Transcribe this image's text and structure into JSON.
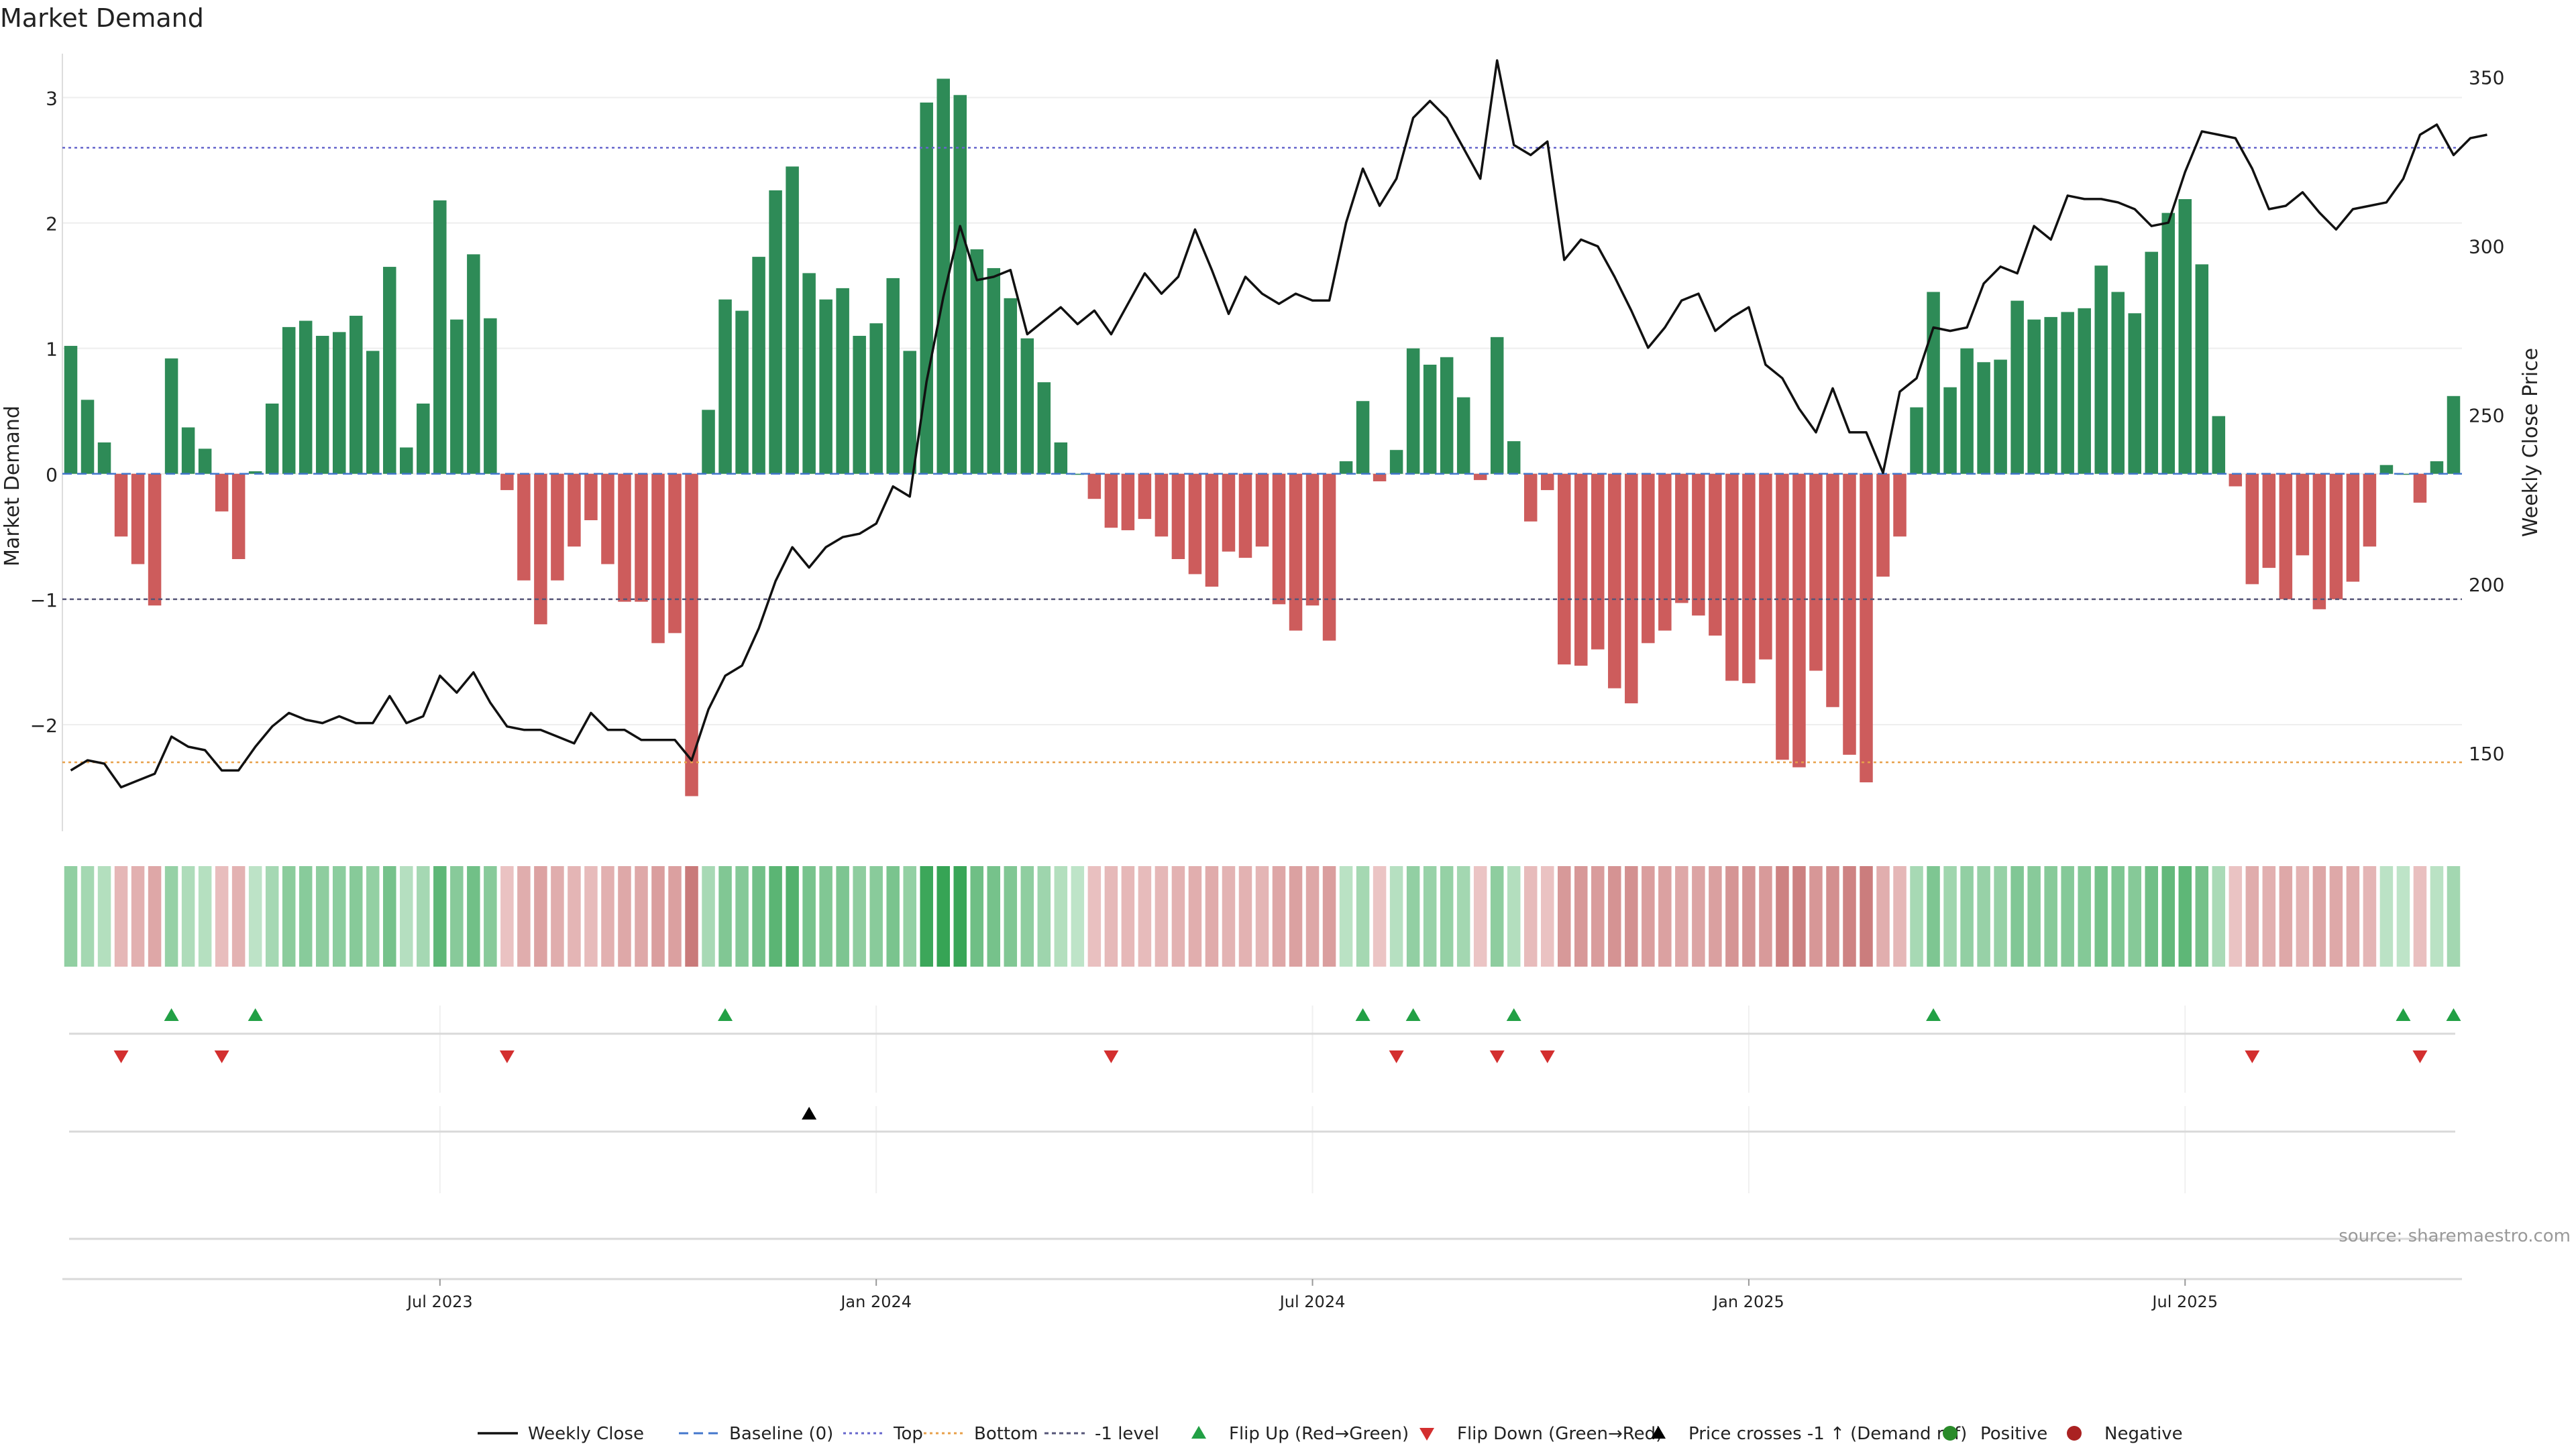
{
  "chart_data": {
    "type": "bar",
    "title": "Market Demand",
    "ylabel": "Market Demand",
    "y2label": "Weekly Close Price",
    "ylim": [
      -2.85,
      3.35
    ],
    "y2lim": [
      127,
      357
    ],
    "yticks": [
      -2,
      -1,
      0,
      1,
      2,
      3
    ],
    "ytick_labels": [
      "−2",
      "−1",
      "0",
      "1",
      "2",
      "3"
    ],
    "y2ticks": [
      150,
      200,
      250,
      300,
      350
    ],
    "ytick2_labels": [
      "150",
      "200",
      "250",
      "300",
      "350"
    ],
    "x_ticks": [
      {
        "week": 22,
        "label": "Jul 2023"
      },
      {
        "week": 48,
        "label": "Jan 2024"
      },
      {
        "week": 74,
        "label": "Jul 2024"
      },
      {
        "week": 100,
        "label": "Jan 2025"
      },
      {
        "week": 126,
        "label": "Jul 2025"
      }
    ],
    "reference_lines": {
      "baseline": 0,
      "top": 2.6,
      "bottom": -2.3,
      "minus_one_level": -1
    },
    "demand": [
      1.02,
      0.59,
      0.25,
      -0.5,
      -0.72,
      -1.05,
      0.92,
      0.37,
      0.2,
      -0.3,
      -0.68,
      0.02,
      0.56,
      1.17,
      1.22,
      1.1,
      1.13,
      1.26,
      0.98,
      1.65,
      0.21,
      0.56,
      2.18,
      1.23,
      1.75,
      1.24,
      -0.13,
      -0.85,
      -1.2,
      -0.85,
      -0.58,
      -0.37,
      -0.72,
      -1.02,
      -1.02,
      -1.35,
      -1.27,
      -2.57,
      0.51,
      1.39,
      1.3,
      1.73,
      2.26,
      2.45,
      1.6,
      1.39,
      1.48,
      1.1,
      1.2,
      1.56,
      0.98,
      2.96,
      3.15,
      3.02,
      1.79,
      1.64,
      1.4,
      1.08,
      0.73,
      0.25,
      0.0,
      -0.2,
      -0.43,
      -0.45,
      -0.36,
      -0.5,
      -0.68,
      -0.8,
      -0.9,
      -0.62,
      -0.67,
      -0.58,
      -1.04,
      -1.25,
      -1.05,
      -1.33,
      0.1,
      0.58,
      -0.06,
      0.19,
      1.0,
      0.87,
      0.93,
      0.61,
      -0.05,
      1.09,
      0.26,
      -0.38,
      -0.13,
      -1.52,
      -1.53,
      -1.4,
      -1.71,
      -1.83,
      -1.35,
      -1.25,
      -1.03,
      -1.13,
      -1.29,
      -1.65,
      -1.67,
      -1.48,
      -2.28,
      -2.34,
      -1.57,
      -1.86,
      -2.24,
      -2.46,
      -0.82,
      -0.5,
      0.53,
      1.45,
      0.69,
      1.0,
      0.89,
      0.91,
      1.38,
      1.23,
      1.25,
      1.29,
      1.32,
      1.66,
      1.45,
      1.28,
      1.77,
      2.08,
      2.19,
      1.67,
      0.46,
      -0.1,
      -0.88,
      -0.75,
      -1.0,
      -0.65,
      -1.08,
      -1.0,
      -0.86,
      -0.58,
      0.07,
      0.0,
      -0.23,
      0.1,
      0.62
    ],
    "weekly_close": [
      145.0,
      148.0,
      147.0,
      140.0,
      142.0,
      144.0,
      155.0,
      152.0,
      151.0,
      145.0,
      145.0,
      152.0,
      158.0,
      162.0,
      160.0,
      159.0,
      161.0,
      159.0,
      159.0,
      167.0,
      159.0,
      161.0,
      173.0,
      168.0,
      174.0,
      165.0,
      158.0,
      157.0,
      157.0,
      155.0,
      153.0,
      162.0,
      157.0,
      157.0,
      154.0,
      154.0,
      154.0,
      148.0,
      163.0,
      173.0,
      176.0,
      187.0,
      201.0,
      211.0,
      205.0,
      211.0,
      214.0,
      215.0,
      218.0,
      229.0,
      226.0,
      260.0,
      285.0,
      306.0,
      290.0,
      291.0,
      293.0,
      274.0,
      278.0,
      282.0,
      277.0,
      281.0,
      274.0,
      283.0,
      292.0,
      286.0,
      291.0,
      305.0,
      293.0,
      280.0,
      291.0,
      286.0,
      283.0,
      286.0,
      284.0,
      284.0,
      307.0,
      323.0,
      312.0,
      320.0,
      338.0,
      343.0,
      338.0,
      329.0,
      320.0,
      355.0,
      330.0,
      327.0,
      331.0,
      296.0,
      302.0,
      300.0,
      291.0,
      281.0,
      270.0,
      276.0,
      284.0,
      286.0,
      275.0,
      279.0,
      282.0,
      265.0,
      261.0,
      252.0,
      245.0,
      258.0,
      245.0,
      245.0,
      233.0,
      257.0,
      261.0,
      276.0,
      275.0,
      276.0,
      289.0,
      294.0,
      292.0,
      306.0,
      302.0,
      315.0,
      314.0,
      314.0,
      313.0,
      311.0,
      306.0,
      307.0,
      322.0,
      334.0,
      333.0,
      332.0,
      323.0,
      311.0,
      312.0,
      316.0,
      310.0,
      305.0,
      311.0,
      312.0,
      313.0,
      320.0,
      333.0,
      336.0,
      327.0,
      332.0,
      333.0
    ],
    "flip_up_weeks": [
      6,
      11,
      39,
      77,
      80,
      86,
      111,
      139,
      142
    ],
    "flip_down_weeks": [
      3,
      9,
      26,
      62,
      79,
      85,
      88,
      130,
      140
    ],
    "price_cross_weeks": [
      44
    ],
    "heat_strip_label": "",
    "source_note": "source: sharemaestro.com",
    "legend": [
      {
        "key": "weekly_close",
        "label": "Weekly Close"
      },
      {
        "key": "baseline",
        "label": "Baseline (0)"
      },
      {
        "key": "top",
        "label": "Top"
      },
      {
        "key": "bottom",
        "label": "Bottom"
      },
      {
        "key": "minus_one",
        "label": "-1 level"
      },
      {
        "key": "flip_up",
        "label": "Flip Up (Red→Green)"
      },
      {
        "key": "flip_down",
        "label": "Flip Down (Green→Red)"
      },
      {
        "key": "price_cross",
        "label": "Price crosses -1 ↑ (Demand ref)"
      },
      {
        "key": "positive",
        "label": "Positive"
      },
      {
        "key": "negative",
        "label": "Negative"
      }
    ],
    "colors": {
      "positive_bar": "#2e8b57",
      "negative_bar": "#cd5c5c",
      "close_line": "#111111",
      "baseline": "#4477cc",
      "top": "#6666cc",
      "bottom": "#e8a04a",
      "minus_one": "#555577",
      "flip_up": "#22a045",
      "flip_down": "#d32f2f",
      "price_cross": "#000000",
      "positive_dot": "#2a8a2a",
      "negative_dot": "#aa2222",
      "grid": "#eeeeee"
    }
  }
}
